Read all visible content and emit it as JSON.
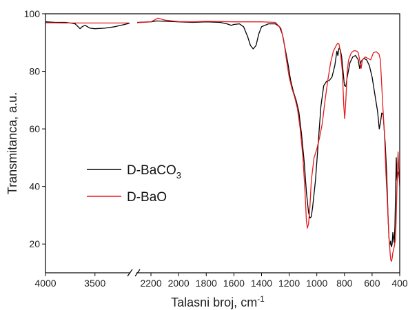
{
  "chart_data": {
    "type": "line",
    "xlabel": "Talasni broj, cm",
    "xlabel_superscript": "-1",
    "ylabel": "Transmitanca, a.u.",
    "xlim": [
      4000,
      400
    ],
    "ylim": [
      10,
      100
    ],
    "axis_break": {
      "from": 3150,
      "to": 2300
    },
    "x_ticks": [
      {
        "value": 4000,
        "label": "4000"
      },
      {
        "value": 3500,
        "label": "3500"
      },
      {
        "value": 2200,
        "label": "2200"
      },
      {
        "value": 2000,
        "label": "2000"
      },
      {
        "value": 1800,
        "label": "1800"
      },
      {
        "value": 1600,
        "label": "1600"
      },
      {
        "value": 1400,
        "label": "1400"
      },
      {
        "value": 1200,
        "label": "1200"
      },
      {
        "value": 1000,
        "label": "1000"
      },
      {
        "value": 800,
        "label": "800"
      },
      {
        "value": 600,
        "label": "600"
      },
      {
        "value": 400,
        "label": "400"
      }
    ],
    "y_ticks": [
      {
        "value": 20,
        "label": "20"
      },
      {
        "value": 40,
        "label": "40"
      },
      {
        "value": 60,
        "label": "60"
      },
      {
        "value": 80,
        "label": "80"
      },
      {
        "value": 100,
        "label": "100"
      }
    ],
    "legend": {
      "placement": "center-left",
      "entries": [
        {
          "text": "D-BaCO",
          "subscript": "3",
          "series": "D-BaCO3"
        },
        {
          "text": "D-BaO",
          "subscript": "",
          "series": "D-BaO"
        }
      ]
    },
    "series": [
      {
        "name": "D-BaCO3",
        "color": "#000000",
        "points": [
          [
            4000,
            97.2
          ],
          [
            3900,
            97.0
          ],
          [
            3800,
            97.0
          ],
          [
            3750,
            96.8
          ],
          [
            3700,
            96.5
          ],
          [
            3670,
            95.5
          ],
          [
            3650,
            94.8
          ],
          [
            3630,
            95.5
          ],
          [
            3600,
            96.0
          ],
          [
            3550,
            95.0
          ],
          [
            3500,
            94.8
          ],
          [
            3400,
            95.0
          ],
          [
            3300,
            95.5
          ],
          [
            3200,
            96.3
          ],
          [
            3150,
            96.7
          ],
          [
            2300,
            97.0
          ],
          [
            2200,
            97.2
          ],
          [
            2160,
            97.5
          ],
          [
            2100,
            97.4
          ],
          [
            2000,
            97.2
          ],
          [
            1900,
            97.0
          ],
          [
            1800,
            97.2
          ],
          [
            1700,
            97.0
          ],
          [
            1650,
            96.5
          ],
          [
            1620,
            96.0
          ],
          [
            1600,
            96.3
          ],
          [
            1560,
            96.5
          ],
          [
            1530,
            95.5
          ],
          [
            1500,
            92.0
          ],
          [
            1480,
            89.0
          ],
          [
            1460,
            87.8
          ],
          [
            1440,
            89.0
          ],
          [
            1420,
            93.0
          ],
          [
            1400,
            95.5
          ],
          [
            1350,
            96.5
          ],
          [
            1300,
            96.5
          ],
          [
            1270,
            95.5
          ],
          [
            1250,
            93.0
          ],
          [
            1230,
            88.0
          ],
          [
            1210,
            83.0
          ],
          [
            1190,
            77.0
          ],
          [
            1170,
            73.0
          ],
          [
            1150,
            70.0
          ],
          [
            1130,
            66.0
          ],
          [
            1110,
            58.0
          ],
          [
            1090,
            48.0
          ],
          [
            1075,
            38.0
          ],
          [
            1060,
            31.0
          ],
          [
            1050,
            29.0
          ],
          [
            1040,
            29.5
          ],
          [
            1030,
            33.0
          ],
          [
            1010,
            42.0
          ],
          [
            990,
            55.0
          ],
          [
            970,
            68.0
          ],
          [
            950,
            75.0
          ],
          [
            930,
            76.5
          ],
          [
            910,
            76.8
          ],
          [
            890,
            78.0
          ],
          [
            870,
            82.0
          ],
          [
            855,
            87.0
          ],
          [
            848,
            85.5
          ],
          [
            840,
            88.0
          ],
          [
            830,
            87.5
          ],
          [
            820,
            85.0
          ],
          [
            800,
            75.0
          ],
          [
            790,
            74.8
          ],
          [
            780,
            78.0
          ],
          [
            760,
            83.0
          ],
          [
            740,
            85.0
          ],
          [
            720,
            85.5
          ],
          [
            700,
            84.0
          ],
          [
            690,
            81.0
          ],
          [
            680,
            83.5
          ],
          [
            660,
            84.5
          ],
          [
            640,
            84.0
          ],
          [
            620,
            82.0
          ],
          [
            600,
            78.0
          ],
          [
            580,
            72.0
          ],
          [
            560,
            66.0
          ],
          [
            548,
            60.0
          ],
          [
            540,
            62.0
          ],
          [
            530,
            65.5
          ],
          [
            520,
            65.0
          ],
          [
            505,
            55.0
          ],
          [
            495,
            45.0
          ],
          [
            485,
            30.0
          ],
          [
            478,
            22.0
          ],
          [
            472,
            19.5
          ],
          [
            466,
            21.0
          ],
          [
            460,
            19.0
          ],
          [
            455,
            20.0
          ],
          [
            450,
            24.0
          ],
          [
            445,
            22.0
          ],
          [
            440,
            20.5
          ],
          [
            435,
            26.0
          ],
          [
            430,
            38.0
          ],
          [
            425,
            50.0
          ],
          [
            420,
            42.0
          ],
          [
            410,
            45.0
          ],
          [
            400,
            44.0
          ]
        ]
      },
      {
        "name": "D-BaO",
        "color": "#e41a1c",
        "points": [
          [
            4000,
            96.9
          ],
          [
            3800,
            96.8
          ],
          [
            3600,
            96.8
          ],
          [
            3400,
            96.8
          ],
          [
            3200,
            96.8
          ],
          [
            3150,
            96.8
          ],
          [
            2300,
            96.9
          ],
          [
            2200,
            97.2
          ],
          [
            2150,
            98.5
          ],
          [
            2100,
            97.8
          ],
          [
            2000,
            97.3
          ],
          [
            1900,
            97.2
          ],
          [
            1800,
            97.4
          ],
          [
            1700,
            97.3
          ],
          [
            1600,
            97.2
          ],
          [
            1500,
            97.2
          ],
          [
            1400,
            97.2
          ],
          [
            1300,
            97.0
          ],
          [
            1260,
            95.0
          ],
          [
            1240,
            91.0
          ],
          [
            1220,
            84.0
          ],
          [
            1200,
            78.0
          ],
          [
            1180,
            74.0
          ],
          [
            1160,
            71.0
          ],
          [
            1140,
            67.0
          ],
          [
            1120,
            60.0
          ],
          [
            1100,
            50.0
          ],
          [
            1085,
            38.0
          ],
          [
            1075,
            28.0
          ],
          [
            1068,
            25.5
          ],
          [
            1060,
            27.0
          ],
          [
            1050,
            33.0
          ],
          [
            1040,
            42.0
          ],
          [
            1020,
            50.0
          ],
          [
            1000,
            53.0
          ],
          [
            980,
            57.0
          ],
          [
            960,
            62.0
          ],
          [
            940,
            70.0
          ],
          [
            920,
            77.0
          ],
          [
            900,
            83.0
          ],
          [
            880,
            87.0
          ],
          [
            860,
            89.0
          ],
          [
            850,
            89.7
          ],
          [
            840,
            89.5
          ],
          [
            830,
            87.0
          ],
          [
            815,
            80.0
          ],
          [
            805,
            68.0
          ],
          [
            798,
            63.5
          ],
          [
            790,
            70.0
          ],
          [
            780,
            80.0
          ],
          [
            770,
            84.0
          ],
          [
            750,
            86.5
          ],
          [
            730,
            87.2
          ],
          [
            710,
            87.0
          ],
          [
            700,
            86.5
          ],
          [
            690,
            84.0
          ],
          [
            680,
            81.0
          ],
          [
            670,
            84.0
          ],
          [
            650,
            85.0
          ],
          [
            630,
            84.5
          ],
          [
            610,
            84.0
          ],
          [
            590,
            86.5
          ],
          [
            570,
            86.8
          ],
          [
            550,
            86.0
          ],
          [
            540,
            84.0
          ],
          [
            530,
            75.0
          ],
          [
            520,
            66.0
          ],
          [
            510,
            58.0
          ],
          [
            500,
            45.0
          ],
          [
            490,
            35.0
          ],
          [
            480,
            24.0
          ],
          [
            470,
            17.0
          ],
          [
            465,
            14.5
          ],
          [
            460,
            14.0
          ],
          [
            455,
            15.0
          ],
          [
            450,
            17.0
          ],
          [
            440,
            19.0
          ],
          [
            430,
            22.0
          ],
          [
            425,
            30.0
          ],
          [
            420,
            40.0
          ],
          [
            412,
            52.0
          ],
          [
            405,
            44.0
          ],
          [
            400,
            40.0
          ]
        ]
      }
    ]
  }
}
